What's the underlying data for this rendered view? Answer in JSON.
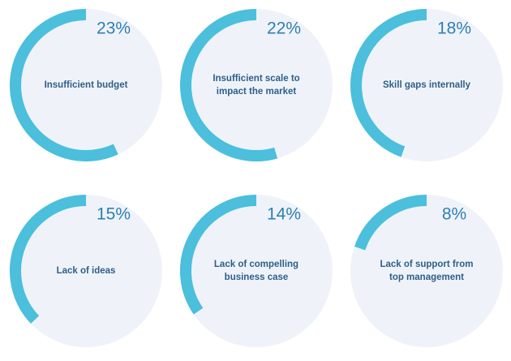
{
  "colors": {
    "ring": "#4bbfdb",
    "disc": "#eff3f9",
    "percent_text": "#2f7fb3",
    "label_text": "#2e5f8a",
    "background": "#ffffff"
  },
  "chart_data": {
    "type": "pie",
    "unit": "%",
    "items": [
      {
        "label_lines": [
          "Insufficient budget"
        ],
        "percent_label": "23%",
        "value": 23
      },
      {
        "label_lines": [
          "Insufficient scale to",
          "impact the market"
        ],
        "percent_label": "22%",
        "value": 22
      },
      {
        "label_lines": [
          "Skill gaps internally"
        ],
        "percent_label": "18%",
        "value": 18
      },
      {
        "label_lines": [
          "Lack of ideas"
        ],
        "percent_label": "15%",
        "value": 15
      },
      {
        "label_lines": [
          "Lack of compelling",
          "business case"
        ],
        "percent_label": "14%",
        "value": 14
      },
      {
        "label_lines": [
          "Lack of support from",
          "top management"
        ],
        "percent_label": "8%",
        "value": 8
      }
    ]
  }
}
